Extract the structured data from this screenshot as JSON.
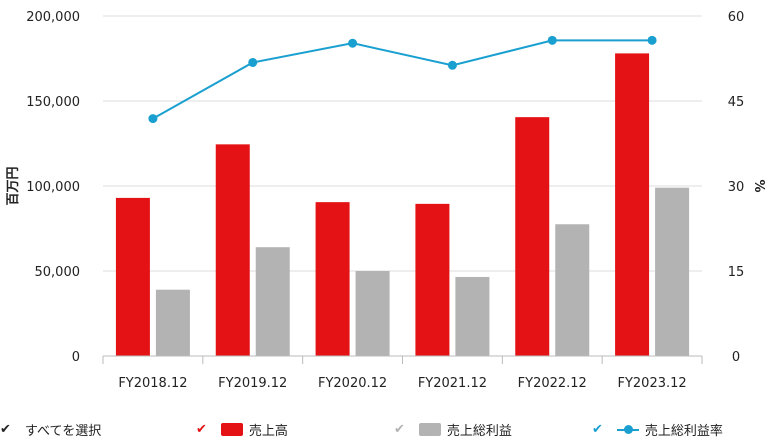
{
  "chart_data": {
    "type": "bar",
    "categories": [
      "FY2018.12",
      "FY2019.12",
      "FY2020.12",
      "FY2021.12",
      "FY2022.12",
      "FY2023.12"
    ],
    "series": [
      {
        "name": "売上高",
        "kind": "bar",
        "axis": "left",
        "color": "#e41215",
        "values": [
          93000,
          124500,
          90500,
          89500,
          140500,
          178000
        ]
      },
      {
        "name": "売上総利益",
        "kind": "bar",
        "axis": "left",
        "color": "#b3b3b3",
        "values": [
          39000,
          64000,
          50000,
          46500,
          77500,
          99000
        ]
      },
      {
        "name": "売上総利益率",
        "kind": "line",
        "axis": "right",
        "color": "#1aa0d0",
        "values": [
          41.9,
          51.8,
          55.2,
          51.3,
          55.7,
          55.7
        ]
      }
    ],
    "y_left": {
      "label": "百万円",
      "ylim": [
        0,
        200000
      ],
      "ticks": [
        "0",
        "50,000",
        "100,000",
        "150,000",
        "200,000"
      ]
    },
    "y_right": {
      "label": "%",
      "ylim": [
        0,
        60
      ],
      "ticks": [
        "0",
        "15",
        "30",
        "45",
        "60"
      ]
    },
    "grid": true,
    "legend_position": "bottom"
  },
  "legend": {
    "select_all": "すべてを選択",
    "select_all_check_color": "#222222",
    "items": [
      "売上高",
      "売上総利益",
      "売上総利益率"
    ],
    "check_colors": [
      "#e41215",
      "#b3b3b3",
      "#1aa0d0"
    ]
  }
}
